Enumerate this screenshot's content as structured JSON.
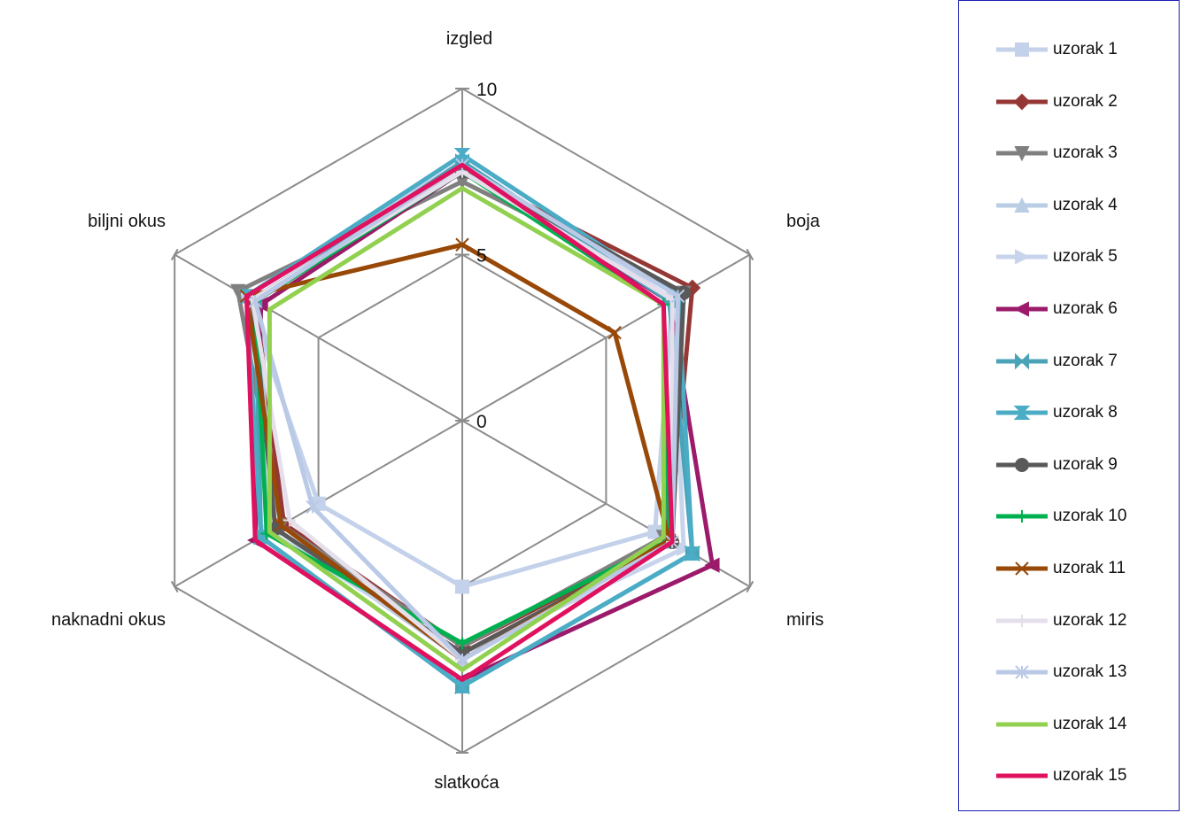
{
  "chart_data": {
    "type": "radar",
    "axes": [
      "izgled",
      "boja",
      "miris",
      "slatkoća",
      "naknadni okus",
      "biljni okus"
    ],
    "rlim": [
      0,
      10
    ],
    "ticks": [
      0,
      5,
      10
    ],
    "tick_labels": [
      "0",
      "5",
      "10"
    ],
    "grid": true,
    "legend_position": "right",
    "series": [
      {
        "name": "uzorak 1",
        "color": "#c3d1ea",
        "marker": "square",
        "values": [
          7.8,
          7.3,
          6.7,
          5.0,
          5.0,
          7.5
        ]
      },
      {
        "name": "uzorak 2",
        "color": "#953735",
        "marker": "diamond",
        "values": [
          7.5,
          8.0,
          7.2,
          6.8,
          6.2,
          7.2
        ]
      },
      {
        "name": "uzorak 3",
        "color": "#808080",
        "marker": "triangle-down",
        "values": [
          7.2,
          7.7,
          7.0,
          6.8,
          6.3,
          7.8
        ]
      },
      {
        "name": "uzorak 4",
        "color": "#b9cde5",
        "marker": "triangle-up",
        "values": [
          7.7,
          7.5,
          7.3,
          7.2,
          6.5,
          7.2
        ]
      },
      {
        "name": "uzorak 5",
        "color": "#c7d4ec",
        "marker": "triangle-right",
        "values": [
          7.7,
          7.3,
          7.7,
          7.0,
          6.7,
          7.3
        ]
      },
      {
        "name": "uzorak 6",
        "color": "#9b1a6a",
        "marker": "triangle-left",
        "values": [
          7.5,
          7.2,
          8.7,
          7.8,
          7.2,
          7.0
        ]
      },
      {
        "name": "uzorak 7",
        "color": "#4aa3b7",
        "marker": "bowtie",
        "values": [
          7.8,
          7.2,
          8.0,
          8.0,
          7.0,
          7.2
        ]
      },
      {
        "name": "uzorak 8",
        "color": "#4bacc6",
        "marker": "hourglass",
        "values": [
          8.0,
          7.5,
          8.0,
          8.0,
          7.0,
          7.5
        ]
      },
      {
        "name": "uzorak 9",
        "color": "#595959",
        "marker": "circle",
        "values": [
          7.5,
          7.7,
          7.3,
          7.0,
          6.5,
          7.3
        ]
      },
      {
        "name": "uzorak 10",
        "color": "#00b050",
        "marker": "plus",
        "values": [
          7.5,
          7.0,
          7.2,
          6.7,
          6.8,
          7.2
        ]
      },
      {
        "name": "uzorak 11",
        "color": "#984807",
        "marker": "x",
        "values": [
          5.3,
          5.3,
          7.2,
          7.2,
          6.3,
          7.5
        ]
      },
      {
        "name": "uzorak 12",
        "color": "#e5dfec",
        "marker": "plus",
        "values": [
          7.5,
          7.3,
          7.3,
          7.2,
          6.0,
          7.3
        ]
      },
      {
        "name": "uzorak 13",
        "color": "#b9c9e6",
        "marker": "asterisk",
        "values": [
          7.7,
          7.5,
          7.3,
          7.2,
          5.2,
          7.2
        ]
      },
      {
        "name": "uzorak 14",
        "color": "#92d050",
        "marker": "none",
        "values": [
          7.0,
          7.0,
          7.0,
          7.5,
          6.7,
          6.7
        ]
      },
      {
        "name": "uzorak 15",
        "color": "#e0115f",
        "marker": "none",
        "values": [
          7.7,
          7.0,
          7.3,
          7.8,
          7.2,
          7.5
        ]
      }
    ]
  }
}
